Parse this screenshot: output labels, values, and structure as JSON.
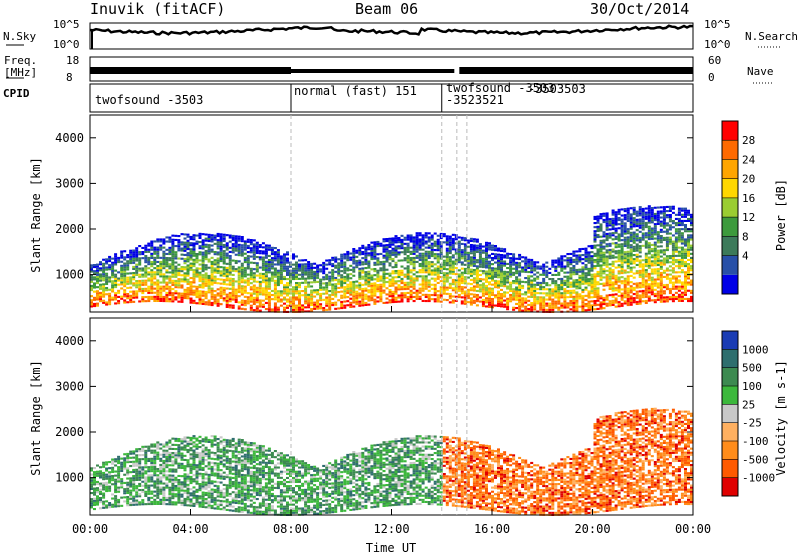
{
  "header": {
    "station": "Inuvik (fitACF)",
    "beam": "Beam 06",
    "date": "30/Oct/2014"
  },
  "top_panels": {
    "nsky_label": "N.Sky",
    "nsky_ticks": [
      "10^5",
      "10^0"
    ],
    "nsearch_label": "N.Search",
    "nsearch_ticks": [
      "10^5",
      "10^0"
    ],
    "freq_label_1": "Freq.",
    "freq_label_2": "[MHz]",
    "freq_ticks": [
      "18",
      "8"
    ],
    "nave_label": "Nave",
    "nave_ticks": [
      "60",
      "0"
    ],
    "cpid_label": "CPID"
  },
  "cpid_segments": [
    {
      "label": "twofsound -3503",
      "start_hour": 0.0
    },
    {
      "label": "normal (fast) 151",
      "start_hour": 8.0
    },
    {
      "label": "twofsound -3503",
      "start_hour": 14.0
    },
    {
      "label": "-3523521",
      "start_hour": 14.0
    },
    {
      "label": "-3503503",
      "start_hour": 15.6
    }
  ],
  "x_axis": {
    "label": "Time UT",
    "ticks": [
      "00:00",
      "04:00",
      "08:00",
      "12:00",
      "16:00",
      "20:00",
      "00:00"
    ]
  },
  "colors": {
    "power": [
      "#0000e6",
      "#2850a8",
      "#3c7a5a",
      "#3c9a3c",
      "#9acd32",
      "#ffd700",
      "#ffa500",
      "#ff6a00",
      "#ff0000"
    ],
    "velocity": [
      "#e00000",
      "#ff5a00",
      "#ff8c1a",
      "#ffb060",
      "#c8c8c8",
      "#3cb83c",
      "#3c8a50",
      "#2e6e6e",
      "#1a3cb4"
    ]
  },
  "chart_data": [
    {
      "type": "heatmap",
      "title": "",
      "xlabel": "Time UT",
      "ylabel": "Slant Range [km]",
      "xlim_hours": [
        0,
        24
      ],
      "ylim": [
        180,
        4500
      ],
      "y_ticks": [
        "4000",
        "3000",
        "2000",
        "1000"
      ],
      "colorbar": {
        "label": "Power [dB]",
        "ticks": [
          "28",
          "24",
          "20",
          "16",
          "12",
          "8",
          "4"
        ],
        "range": [
          0,
          32
        ]
      }
    },
    {
      "type": "heatmap",
      "title": "",
      "xlabel": "Time UT",
      "ylabel": "Slant Range [km]",
      "xlim_hours": [
        0,
        24
      ],
      "ylim": [
        180,
        4500
      ],
      "y_ticks": [
        "4000",
        "3000",
        "2000",
        "1000"
      ],
      "colorbar": {
        "label": "Velocity [m s-1]",
        "ticks": [
          "1000",
          "500",
          "100",
          "25",
          "-25",
          "-100",
          "-500",
          "-1000"
        ]
      }
    }
  ]
}
